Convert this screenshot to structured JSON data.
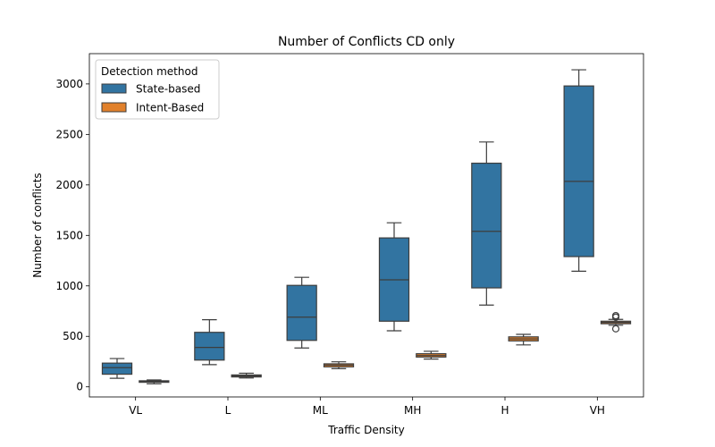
{
  "chart_data": {
    "type": "boxplot",
    "title": "Number of Conflicts CD only",
    "xlabel": "Traffic Density",
    "ylabel": "Number of conflicts",
    "categories": [
      "VL",
      "L",
      "ML",
      "MH",
      "H",
      "VH"
    ],
    "ylim": [
      -100,
      3300
    ],
    "yticks": [
      0,
      500,
      1000,
      1500,
      2000,
      2500,
      3000
    ],
    "grid": false,
    "legend": {
      "title": "Detection method",
      "position": "top-left"
    },
    "series": [
      {
        "name": "State-based",
        "color": "#3274a1",
        "boxes": [
          {
            "whislo": 85,
            "q1": 125,
            "med": 190,
            "q3": 235,
            "whishi": 280,
            "fliers": []
          },
          {
            "whislo": 220,
            "q1": 265,
            "med": 390,
            "q3": 540,
            "whishi": 665,
            "fliers": []
          },
          {
            "whislo": 385,
            "q1": 460,
            "med": 690,
            "q3": 1005,
            "whishi": 1085,
            "fliers": []
          },
          {
            "whislo": 555,
            "q1": 650,
            "med": 1060,
            "q3": 1475,
            "whishi": 1625,
            "fliers": []
          },
          {
            "whislo": 810,
            "q1": 980,
            "med": 1540,
            "q3": 2215,
            "whishi": 2425,
            "fliers": []
          },
          {
            "whislo": 1145,
            "q1": 1290,
            "med": 2035,
            "q3": 2980,
            "whishi": 3140,
            "fliers": []
          }
        ]
      },
      {
        "name": "Intent-Based",
        "color": "#e1812c",
        "boxes": [
          {
            "whislo": 30,
            "q1": 45,
            "med": 52,
            "q3": 60,
            "whishi": 68,
            "fliers": []
          },
          {
            "whislo": 88,
            "q1": 98,
            "med": 108,
            "q3": 118,
            "whishi": 135,
            "fliers": []
          },
          {
            "whislo": 180,
            "q1": 198,
            "med": 215,
            "q3": 228,
            "whishi": 248,
            "fliers": []
          },
          {
            "whislo": 275,
            "q1": 295,
            "med": 310,
            "q3": 328,
            "whishi": 352,
            "fliers": []
          },
          {
            "whislo": 415,
            "q1": 455,
            "med": 475,
            "q3": 495,
            "whishi": 520,
            "fliers": []
          },
          {
            "whislo": 610,
            "q1": 625,
            "med": 638,
            "q3": 650,
            "whishi": 668,
            "fliers": [
              575,
              690,
              705
            ]
          }
        ]
      }
    ]
  }
}
